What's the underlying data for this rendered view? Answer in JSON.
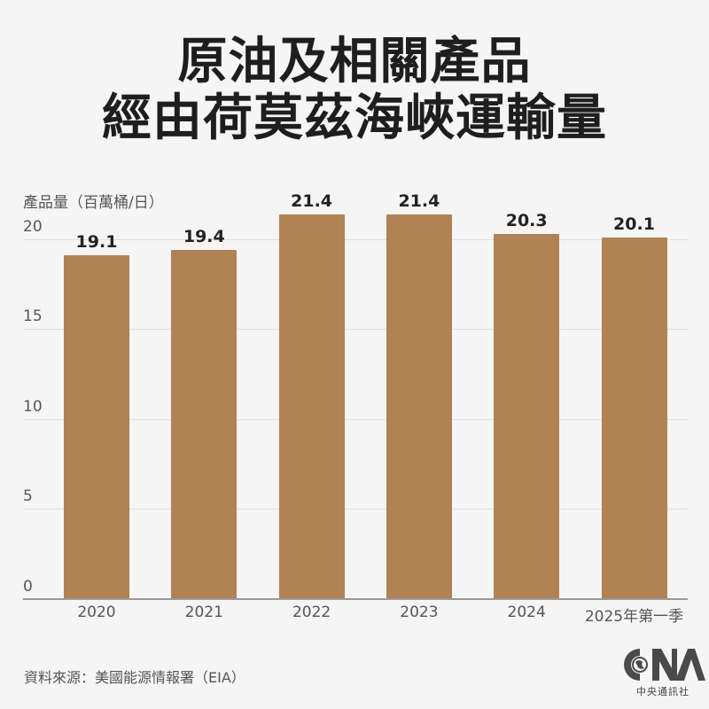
{
  "title": {
    "line1": "原油及相關產品",
    "line2": "經由荷莫茲海峽運輸量"
  },
  "chart_data": {
    "type": "bar",
    "title": "原油及相關產品經由荷莫茲海峽運輸量",
    "xlabel": "",
    "ylabel": "產品量（百萬桶/日）",
    "categories": [
      "2020",
      "2021",
      "2022",
      "2023",
      "2024",
      "2025年第一季"
    ],
    "values": [
      19.1,
      19.4,
      21.4,
      21.4,
      20.3,
      20.1
    ],
    "value_labels": [
      "19.1",
      "19.4",
      "21.4",
      "21.4",
      "20.3",
      "20.1"
    ],
    "yticks": [
      0,
      5,
      10,
      15,
      20
    ],
    "ytick_labels": [
      "0",
      "5",
      "10",
      "15",
      "20"
    ],
    "ylim": [
      0,
      21.72
    ],
    "grid": true,
    "legend": null,
    "bar_color": "#b08254"
  },
  "ylabel": "產品量（百萬桶/日）",
  "source": "資料來源：美國能源情報署（EIA）",
  "logo": {
    "mark": "CNA",
    "name": "中央通訊社"
  },
  "colors": {
    "background": "#f5f5f5",
    "bar": "#b08254",
    "grid": "#dedede",
    "axis": "#9a9a9a",
    "text": "#222222",
    "muted_text": "#555555"
  }
}
